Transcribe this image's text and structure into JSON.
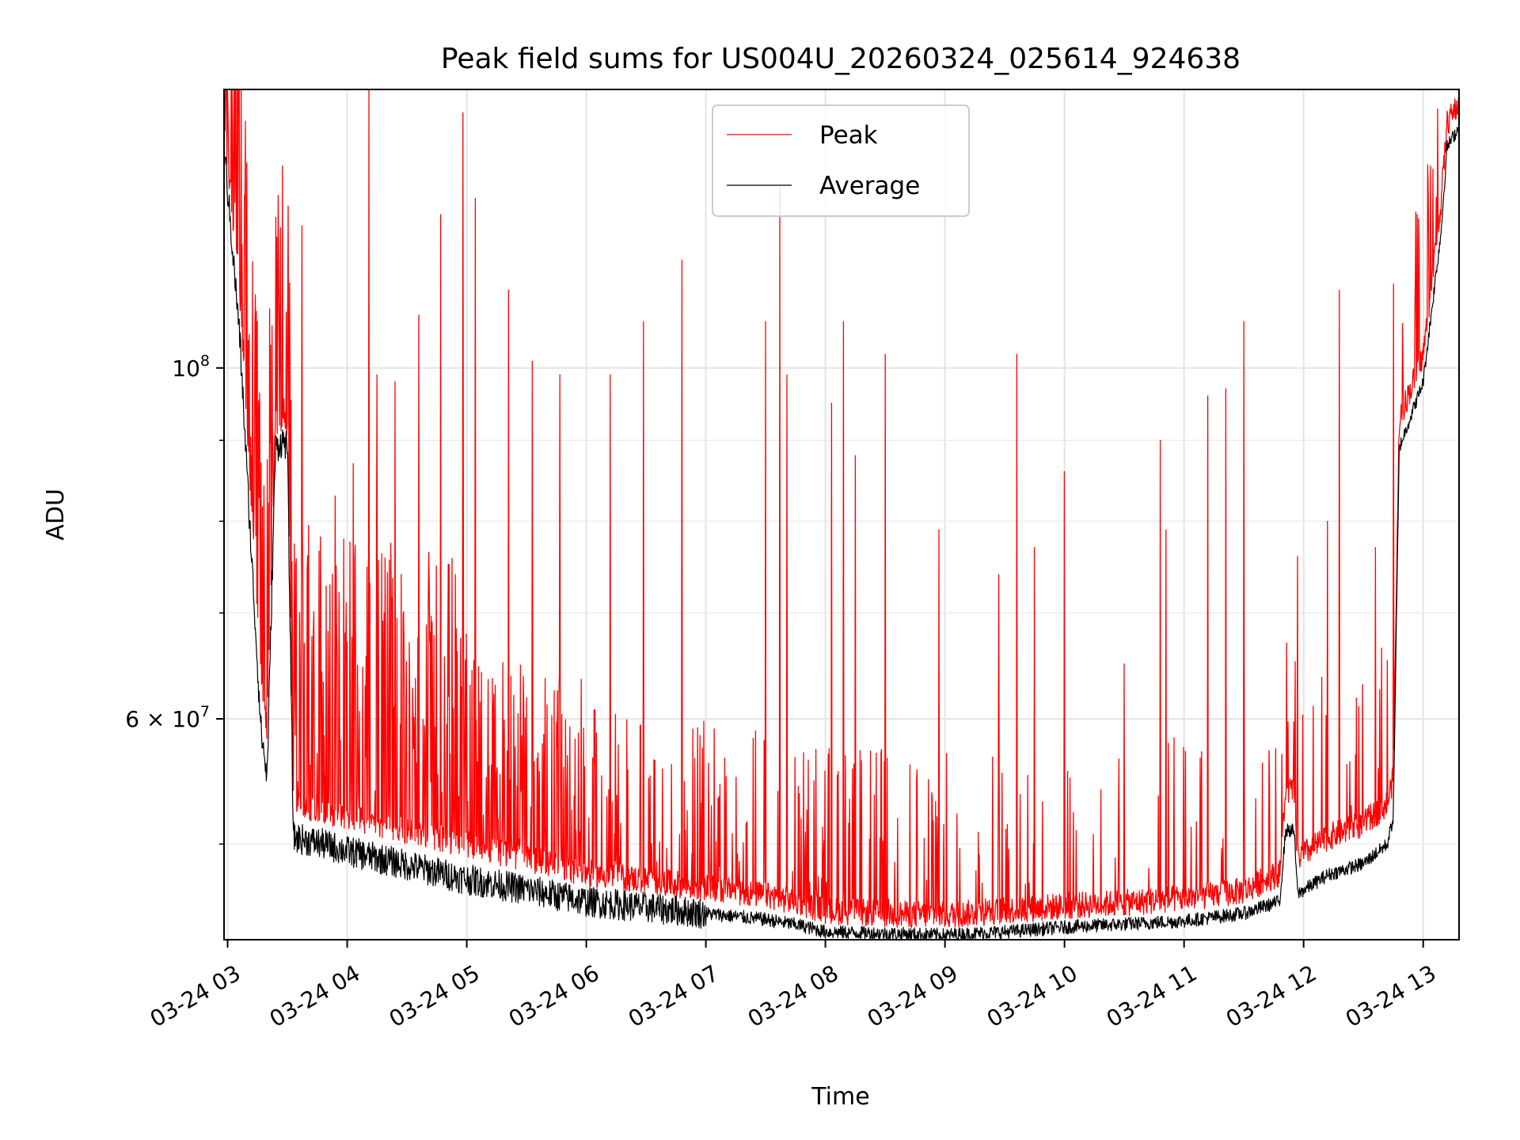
{
  "chart_data": {
    "type": "line",
    "title": "Peak field sums for US004U_20260324_025614_924638",
    "xlabel": "Time",
    "ylabel": "ADU",
    "yscale": "log",
    "ylim": [
      43500000,
      150000000
    ],
    "xlim_hours": [
      2.97,
      13.3
    ],
    "grid": true,
    "legend_position": "top-center",
    "x_ticks": [
      {
        "hour": 3,
        "label": "03-24 03"
      },
      {
        "hour": 4,
        "label": "03-24 04"
      },
      {
        "hour": 5,
        "label": "03-24 05"
      },
      {
        "hour": 6,
        "label": "03-24 06"
      },
      {
        "hour": 7,
        "label": "03-24 07"
      },
      {
        "hour": 8,
        "label": "03-24 08"
      },
      {
        "hour": 9,
        "label": "03-24 09"
      },
      {
        "hour": 10,
        "label": "03-24 10"
      },
      {
        "hour": 11,
        "label": "03-24 11"
      },
      {
        "hour": 12,
        "label": "03-24 12"
      },
      {
        "hour": 13,
        "label": "03-24 13"
      }
    ],
    "y_major_ticks": [
      {
        "value": 100000000,
        "mantissa": "",
        "base": "10",
        "exp": "8"
      },
      {
        "value": 60000000,
        "mantissa": "6 × ",
        "base": "10",
        "exp": "7"
      }
    ],
    "y_minor_ticks": [
      50000000,
      70000000,
      80000000,
      90000000
    ],
    "series": [
      {
        "name": "Peak",
        "color": "#ff0000",
        "baseline": {
          "hours": [
            2.97,
            3.1,
            3.2,
            3.28,
            3.33,
            3.4,
            3.47,
            3.5,
            3.55,
            3.8,
            4.0,
            4.5,
            5.0,
            5.5,
            6.0,
            6.5,
            7.0,
            7.5,
            7.8,
            8.0,
            8.5,
            9.0,
            9.5,
            10.0,
            10.5,
            11.0,
            11.5,
            11.8,
            11.85,
            11.92,
            11.95,
            12.2,
            12.5,
            12.7,
            12.75,
            12.8,
            13.0,
            13.15,
            13.2,
            13.3
          ],
          "values": [
            140000000,
            110000000,
            80000000,
            62000000,
            58000000,
            90000000,
            91000000,
            90000000,
            52000000,
            51500000,
            51000000,
            50000000,
            49000000,
            48000000,
            47000000,
            46500000,
            46000000,
            45500000,
            45000000,
            44500000,
            44300000,
            44200000,
            44500000,
            44800000,
            45000000,
            45300000,
            45800000,
            47000000,
            53000000,
            53000000,
            48000000,
            49500000,
            50500000,
            52000000,
            54000000,
            91000000,
            100000000,
            125000000,
            140000000,
            144000000
          ]
        },
        "spikes": [
          {
            "hour": 3.18,
            "value": 105000000
          },
          {
            "hour": 3.25,
            "value": 107000000
          },
          {
            "hour": 3.35,
            "value": 109000000
          },
          {
            "hour": 3.42,
            "value": 109000000
          },
          {
            "hour": 3.62,
            "value": 123000000
          },
          {
            "hour": 3.9,
            "value": 83000000
          },
          {
            "hour": 4.05,
            "value": 87000000
          },
          {
            "hour": 4.18,
            "value": 150000000
          },
          {
            "hour": 4.25,
            "value": 99000000
          },
          {
            "hour": 4.4,
            "value": 98000000
          },
          {
            "hour": 4.6,
            "value": 108000000
          },
          {
            "hour": 4.78,
            "value": 125000000
          },
          {
            "hour": 4.97,
            "value": 145000000
          },
          {
            "hour": 5.07,
            "value": 128000000
          },
          {
            "hour": 5.35,
            "value": 112000000
          },
          {
            "hour": 5.55,
            "value": 101000000
          },
          {
            "hour": 5.78,
            "value": 99000000
          },
          {
            "hour": 6.2,
            "value": 99000000
          },
          {
            "hour": 6.48,
            "value": 107000000
          },
          {
            "hour": 6.8,
            "value": 117000000
          },
          {
            "hour": 7.5,
            "value": 107000000
          },
          {
            "hour": 7.62,
            "value": 130000000
          },
          {
            "hour": 7.68,
            "value": 99000000
          },
          {
            "hour": 8.15,
            "value": 107000000
          },
          {
            "hour": 8.5,
            "value": 102000000
          },
          {
            "hour": 8.05,
            "value": 95000000
          },
          {
            "hour": 8.25,
            "value": 88000000
          },
          {
            "hour": 8.95,
            "value": 79000000
          },
          {
            "hour": 9.6,
            "value": 102000000
          },
          {
            "hour": 9.45,
            "value": 74000000
          },
          {
            "hour": 9.75,
            "value": 77000000
          },
          {
            "hour": 10.0,
            "value": 86000000
          },
          {
            "hour": 10.5,
            "value": 65000000
          },
          {
            "hour": 10.85,
            "value": 79000000
          },
          {
            "hour": 10.8,
            "value": 90000000
          },
          {
            "hour": 11.2,
            "value": 96000000
          },
          {
            "hour": 11.35,
            "value": 97000000
          },
          {
            "hour": 11.5,
            "value": 107000000
          },
          {
            "hour": 11.95,
            "value": 76000000
          },
          {
            "hour": 12.2,
            "value": 80000000
          },
          {
            "hour": 12.3,
            "value": 112000000
          },
          {
            "hour": 12.6,
            "value": 77000000
          },
          {
            "hour": 12.75,
            "value": 113000000
          },
          {
            "hour": 12.95,
            "value": 125000000
          }
        ]
      },
      {
        "name": "Average",
        "color": "#000000",
        "baseline": {
          "hours": [
            2.97,
            3.1,
            3.2,
            3.28,
            3.33,
            3.4,
            3.47,
            3.5,
            3.55,
            3.8,
            4.0,
            4.5,
            5.0,
            5.5,
            6.0,
            6.5,
            7.0,
            7.5,
            7.8,
            8.0,
            8.5,
            9.0,
            9.5,
            10.0,
            10.5,
            11.0,
            11.5,
            11.8,
            11.85,
            11.92,
            11.95,
            12.2,
            12.5,
            12.7,
            12.75,
            12.8,
            13.0,
            13.15,
            13.2,
            13.3
          ],
          "values": [
            138000000,
            105000000,
            76000000,
            59000000,
            55000000,
            89000000,
            90000000,
            89000000,
            50500000,
            50000000,
            49500000,
            48500000,
            47500000,
            46800000,
            46000000,
            45600000,
            45200000,
            44800000,
            44400000,
            44000000,
            43900000,
            43800000,
            44000000,
            44300000,
            44500000,
            44700000,
            45200000,
            46000000,
            51000000,
            51000000,
            46500000,
            47800000,
            48600000,
            50000000,
            52000000,
            89000000,
            98000000,
            122000000,
            138000000,
            142000000
          ]
        }
      }
    ]
  }
}
